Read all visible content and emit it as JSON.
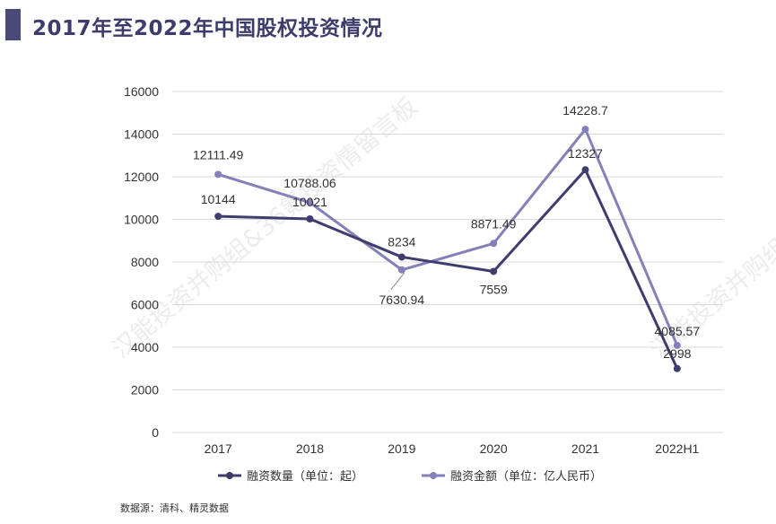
{
  "title": "2017年至2022年中国股权投资情况",
  "source": "数据源：清科、精灵数据",
  "watermark": "汉能投资并购组&36氪投资情留言板",
  "colors": {
    "title_bar": "#4a4a78",
    "series1": "#3f3d6e",
    "series2": "#8480b8",
    "grid": "#d9d9d9"
  },
  "chart_data": {
    "type": "line",
    "categories": [
      "2017",
      "2018",
      "2019",
      "2020",
      "2021",
      "2022H1"
    ],
    "ylim": [
      0,
      16000
    ],
    "yticks": [
      "0",
      "2000",
      "4000",
      "6000",
      "8000",
      "10000",
      "12000",
      "14000",
      "16000"
    ],
    "grid": "horizontal",
    "legend": "bottom",
    "series": [
      {
        "name": "融资数量（单位：起）",
        "values": [
          10144,
          10021,
          8234,
          7559,
          12327,
          2998
        ],
        "labels": [
          "10144",
          "10021",
          "8234",
          "7559",
          "12327",
          "2998"
        ]
      },
      {
        "name": "融资金额（单位：亿人民币）",
        "values": [
          12111.49,
          10788.06,
          7630.94,
          8871.49,
          14228.7,
          4085.57
        ],
        "labels": [
          "12111.49",
          "10788.06",
          "7630.94",
          "8871.49",
          "14228.7",
          "4085.57"
        ]
      }
    ]
  }
}
